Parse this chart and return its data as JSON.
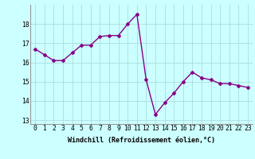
{
  "hours": [
    0,
    1,
    2,
    3,
    4,
    5,
    6,
    7,
    8,
    9,
    10,
    11,
    12,
    13,
    14,
    15,
    16,
    17,
    18,
    19,
    20,
    21,
    22,
    23
  ],
  "values": [
    16.7,
    16.4,
    16.1,
    16.1,
    16.5,
    16.9,
    16.9,
    17.35,
    17.4,
    17.4,
    18.0,
    18.5,
    15.1,
    13.3,
    13.9,
    14.4,
    15.0,
    15.5,
    15.2,
    15.1,
    14.9,
    14.9,
    14.8,
    14.7
  ],
  "line_color": "#880088",
  "marker": "D",
  "marker_size": 2.0,
  "bg_color": "#ccffff",
  "grid_color": "#aadddd",
  "xlabel": "Windchill (Refroidissement éolien,°C)",
  "xlim": [
    -0.5,
    23.5
  ],
  "ylim": [
    12.8,
    19.0
  ],
  "yticks": [
    13,
    14,
    15,
    16,
    17,
    18
  ],
  "xtick_labels": [
    "0",
    "1",
    "2",
    "3",
    "4",
    "5",
    "6",
    "7",
    "8",
    "9",
    "10",
    "11",
    "12",
    "13",
    "14",
    "15",
    "16",
    "17",
    "18",
    "19",
    "20",
    "21",
    "22",
    "23"
  ],
  "xlabel_fontsize": 6.0,
  "tick_fontsize": 5.8,
  "line_width": 1.0
}
